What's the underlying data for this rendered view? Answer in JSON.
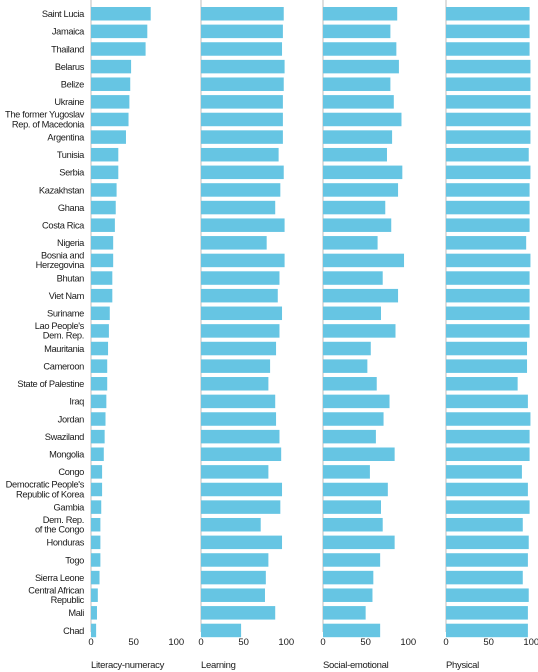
{
  "chart_data": {
    "type": "bar",
    "orientation": "horizontal",
    "bar_color": "#66c5e3",
    "axis_color": "#bdbdbd",
    "xlim": [
      0,
      100
    ],
    "ticks": [
      "0",
      "50",
      "100"
    ],
    "categories": [
      "Saint Lucia",
      "Jamaica",
      "Thailand",
      "Belarus",
      "Belize",
      "Ukraine",
      "The former Yugoslav\nRep. of Macedonia",
      "Argentina",
      "Tunisia",
      "Serbia",
      "Kazakhstan",
      "Ghana",
      "Costa Rica",
      "Nigeria",
      "Bosnia and\nHerzegovina",
      "Bhutan",
      "Viet Nam",
      "Suriname",
      "Lao People's\nDem. Rep.",
      "Mauritania",
      "Cameroon",
      "State of Palestine",
      "Iraq",
      "Jordan",
      "Swaziland",
      "Mongolia",
      "Congo",
      "Democratic People's\nRepublic of Korea",
      "Gambia",
      "Dem. Rep.\nof the Congo",
      "Honduras",
      "Togo",
      "Sierra Leone",
      "Central African\nRepublic",
      "Mali",
      "Chad"
    ],
    "series": [
      {
        "name": "Literacy-numeracy",
        "values": [
          70,
          66,
          64,
          47,
          46,
          45,
          44,
          41,
          32,
          32,
          30,
          29,
          28,
          26,
          26,
          25,
          25,
          22,
          21,
          20,
          19,
          19,
          18,
          17,
          16,
          15,
          13,
          13,
          12,
          11,
          11,
          11,
          10,
          8,
          7,
          6
        ]
      },
      {
        "name": "Learning",
        "values": [
          97,
          96,
          95,
          98,
          97,
          96,
          96,
          96,
          91,
          97,
          93,
          87,
          98,
          77,
          98,
          92,
          90,
          95,
          92,
          88,
          81,
          79,
          87,
          88,
          92,
          94,
          79,
          95,
          93,
          70,
          95,
          79,
          76,
          75,
          87,
          47
        ]
      },
      {
        "name": "Social-emotional",
        "values": [
          87,
          79,
          86,
          89,
          79,
          83,
          92,
          81,
          75,
          93,
          88,
          73,
          80,
          64,
          95,
          70,
          88,
          68,
          85,
          56,
          52,
          63,
          78,
          71,
          62,
          84,
          55,
          76,
          68,
          70,
          84,
          67,
          59,
          58,
          50,
          67
        ]
      },
      {
        "name": "Physical",
        "values": [
          98,
          98,
          98,
          99,
          99,
          99,
          99,
          99,
          97,
          99,
          98,
          98,
          98,
          94,
          99,
          98,
          98,
          98,
          98,
          95,
          95,
          84,
          96,
          99,
          98,
          98,
          89,
          96,
          98,
          90,
          97,
          96,
          90,
          97,
          96,
          96
        ]
      }
    ]
  }
}
